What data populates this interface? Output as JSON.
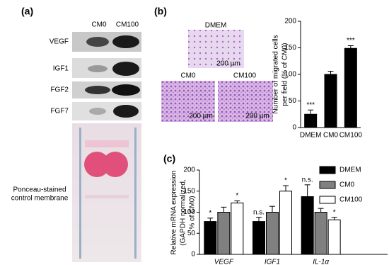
{
  "panel_labels": [
    "(a)",
    "(b)",
    "(c)"
  ],
  "blot": {
    "columns": [
      "CM0",
      "CM100"
    ],
    "rows": [
      "VEGF",
      "IGF1",
      "FGF2",
      "FGF7"
    ],
    "membrane_label": [
      "Ponceau-stained",
      "control membrane"
    ]
  },
  "micrographs": [
    {
      "label": "DMEM",
      "scale": "200 µm"
    },
    {
      "label": "CM0",
      "scale": "200 µm"
    },
    {
      "label": "CM100",
      "scale": "200 µm"
    }
  ],
  "chart_data": [
    {
      "type": "bar",
      "y_label": [
        "Number of migrated cells",
        "per field (% of CM0)"
      ],
      "categories": [
        "DMEM",
        "CM0",
        "CM100"
      ],
      "values": [
        25,
        100,
        149
      ],
      "errors": [
        8,
        6,
        5
      ],
      "significance": [
        "***",
        null,
        "***"
      ],
      "color": "#000000",
      "ylim": [
        0,
        200
      ],
      "yticks": [
        0,
        50,
        100,
        150,
        200
      ]
    },
    {
      "type": "grouped_bar",
      "y_label": [
        "Relative mRNA expression",
        "(GAPDH normalized,",
        "% of CM0)"
      ],
      "categories": [
        "VEGF",
        "IGF1",
        "IL-1α"
      ],
      "series": [
        {
          "name": "DMEM",
          "color": "#000000",
          "values": [
            78,
            78,
            137
          ],
          "errors": [
            8,
            10,
            28
          ],
          "significance": [
            "*",
            "n.s.",
            "n.s."
          ]
        },
        {
          "name": "CM0",
          "color": "#808080",
          "values": [
            100,
            100,
            100
          ],
          "errors": [
            12,
            14,
            9
          ],
          "significance": [
            null,
            null,
            null
          ]
        },
        {
          "name": "CM100",
          "color": "#ffffff",
          "values": [
            122,
            150,
            82
          ],
          "errors": [
            5,
            13,
            6
          ],
          "significance": [
            "*",
            "*",
            "*"
          ]
        }
      ],
      "ylim": [
        0,
        200
      ],
      "yticks": [
        0,
        50,
        100,
        150,
        200
      ],
      "legend": "upper right"
    }
  ]
}
